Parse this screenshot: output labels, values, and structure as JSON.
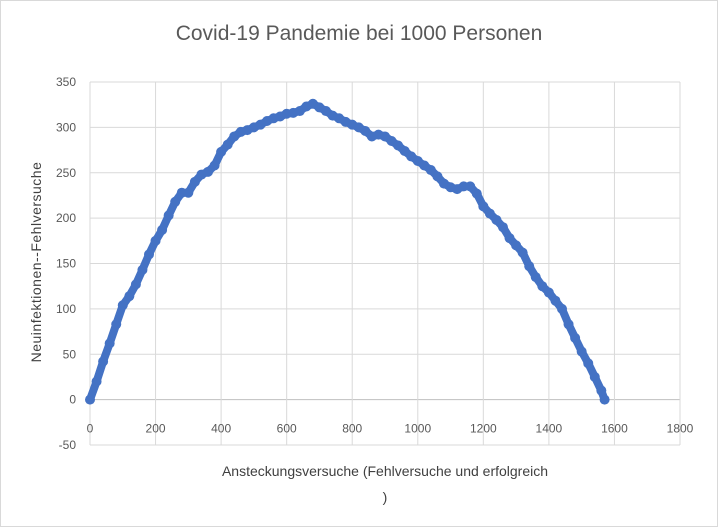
{
  "chart_data": {
    "type": "scatter",
    "title": "Covid-19 Pandemie bei 1000 Personen",
    "xlabel": "Ansteckungsversuche (Fehlversuche und erfolgreich\n)",
    "ylabel": "Neuinfektionen--Fehlversuche",
    "xlim": [
      0,
      1800
    ],
    "ylim": [
      -50,
      350
    ],
    "x_ticks": [
      "0",
      "200",
      "400",
      "600",
      "800",
      "1000",
      "1200",
      "1400",
      "1600",
      "1800"
    ],
    "y_ticks": [
      "-50",
      "0",
      "50",
      "100",
      "150",
      "200",
      "250",
      "300",
      "350"
    ],
    "grid": true,
    "legend": "none",
    "color": "#4472c4",
    "series": [
      {
        "x": [
          0,
          20,
          40,
          60,
          80,
          100,
          120,
          140,
          160,
          180,
          200,
          220,
          240,
          260,
          280,
          300,
          320,
          340,
          360,
          380,
          400,
          420,
          440,
          460,
          480,
          500,
          520,
          540,
          560,
          580,
          600,
          620,
          640,
          660,
          680,
          700,
          720,
          740,
          760,
          780,
          800,
          820,
          840,
          860,
          880,
          900,
          920,
          940,
          960,
          980,
          1000,
          1020,
          1040,
          1060,
          1080,
          1100,
          1120,
          1140,
          1160,
          1180,
          1200,
          1220,
          1240,
          1260,
          1280,
          1300,
          1320,
          1340,
          1360,
          1380,
          1400,
          1420,
          1440,
          1460,
          1480,
          1500,
          1520,
          1540,
          1560,
          1570
        ],
        "y": [
          0,
          20,
          42,
          62,
          83,
          104,
          114,
          127,
          143,
          160,
          175,
          187,
          203,
          218,
          228,
          228,
          240,
          248,
          251,
          258,
          273,
          281,
          290,
          295,
          297,
          300,
          303,
          307,
          310,
          312,
          315,
          316,
          318,
          323,
          326,
          322,
          318,
          313,
          310,
          306,
          303,
          300,
          296,
          290,
          292,
          290,
          285,
          280,
          274,
          268,
          263,
          258,
          253,
          246,
          238,
          234,
          232,
          235,
          235,
          227,
          213,
          205,
          198,
          190,
          178,
          170,
          162,
          147,
          135,
          125,
          118,
          109,
          100,
          83,
          68,
          53,
          40,
          25,
          10,
          0
        ]
      }
    ]
  }
}
